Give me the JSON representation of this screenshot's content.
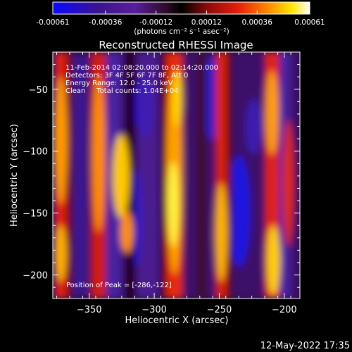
{
  "colorbar": {
    "tick_labels": [
      "-0.00061",
      "-0.00036",
      "-0.00012",
      "0.00012",
      "0.00036",
      "0.00061"
    ],
    "tick_values": [
      -0.00061,
      -0.00036,
      -0.00012,
      0.00012,
      0.00036,
      0.00061
    ],
    "range": [
      -0.00061,
      0.00061
    ],
    "units_label": "(photons cm⁻² s⁻¹ asec⁻²)"
  },
  "chart_data": {
    "type": "heatmap",
    "title": "Reconstructed RHESSI Image",
    "xlabel": "Heliocentric X (arcsec)",
    "ylabel": "Heliocentric Y (arcsec)",
    "xlim": [
      -378,
      -188
    ],
    "ylim": [
      -219,
      -20
    ],
    "xticks": [
      -350,
      -300,
      -250,
      -200
    ],
    "yticks": [
      -50,
      -100,
      -150,
      -200
    ],
    "colormap": "RHESSI blue-purple-red-yellow-white",
    "annotations": [
      "11-Feb-2014 02:08:20.000 to 02:14:20.000",
      "Detectors: 3F 4F 5F 6F 7F 8F, Att 0",
      "Energy Range: 12.0 - 25.0 keV",
      "Clean     Total counts: 1.04E+04"
    ],
    "peak_label": "Position of Peak = [-286,-122]",
    "peak_position": [
      -286,
      -122
    ]
  },
  "footer": {
    "timestamp": "12-May-2022 17:35"
  },
  "colors": {
    "colormap_stops": [
      "#0a0aff",
      "#3c1490",
      "#5a1e9c",
      "#2a0a20",
      "#000000",
      "#8b0a0a",
      "#e61e0a",
      "#ff8c00",
      "#ffe600",
      "#ffffff"
    ]
  }
}
